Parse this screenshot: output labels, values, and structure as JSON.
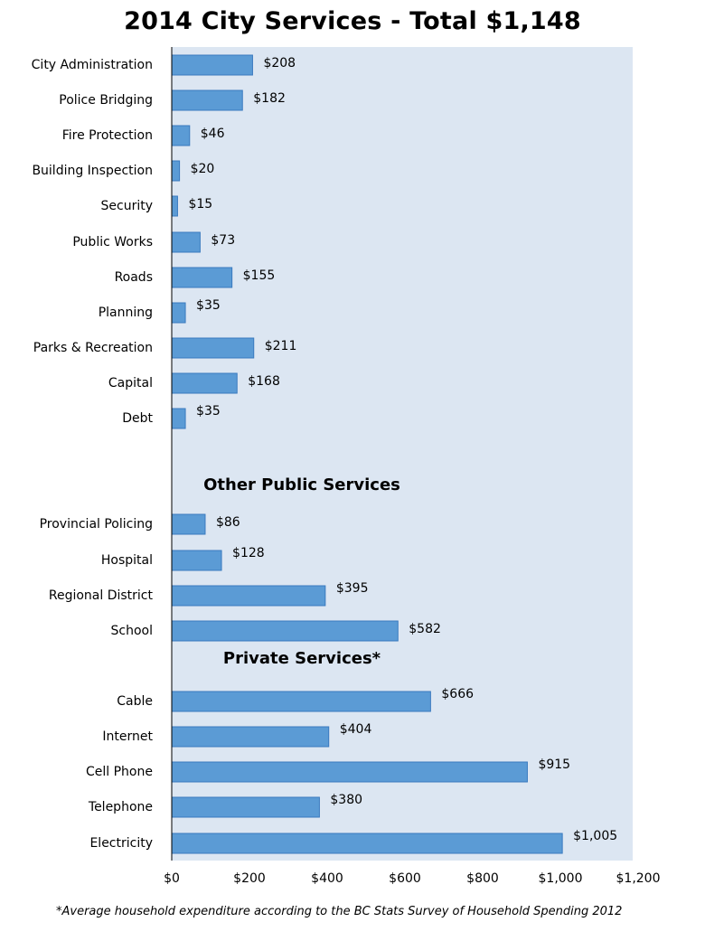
{
  "title": "2014 City Services - Total $1,148",
  "footnote": "*Average household expenditure according to the BC Stats Survey of Household Spending 2012",
  "colors": {
    "bar": "#5b9bd5",
    "bar_stroke": "#3a7abf",
    "plot_background": "#dce6f2",
    "axis": "#000000"
  },
  "chart_data": {
    "type": "bar",
    "orientation": "horizontal",
    "title": "2014 City Services - Total $1,148",
    "xlabel": "",
    "ylabel": "",
    "xlim": [
      0,
      1200
    ],
    "x_ticks": [
      "$0",
      "$200",
      "$400",
      "$600",
      "$800",
      "$1,000",
      "$1,200"
    ],
    "x_tick_values": [
      0,
      200,
      400,
      600,
      800,
      1000,
      1200
    ],
    "grid": false,
    "legend": "none",
    "groups": [
      {
        "heading": "",
        "categories": [
          "City Administration",
          "Police Bridging",
          "Fire Protection",
          "Building Inspection",
          "Security",
          "Public Works",
          "Roads",
          "Planning",
          "Parks & Recreation",
          "Capital",
          "Debt"
        ],
        "values": [
          208,
          182,
          46,
          20,
          15,
          73,
          155,
          35,
          211,
          168,
          35
        ],
        "labels": [
          "$208",
          "$182",
          "$46",
          "$20",
          "$15",
          "$73",
          "$155",
          "$35",
          "$211",
          "$168",
          "$35"
        ]
      },
      {
        "heading": "Other Public Services",
        "categories": [
          "Provincial Policing",
          "Hospital",
          "Regional District",
          "School"
        ],
        "values": [
          86,
          128,
          395,
          582
        ],
        "labels": [
          "$86",
          "$128",
          "$395",
          "$582"
        ]
      },
      {
        "heading": "Private Services*",
        "categories": [
          "Cable",
          "Internet",
          "Cell Phone",
          "Telephone",
          "Electricity"
        ],
        "values": [
          666,
          404,
          915,
          380,
          1005
        ],
        "labels": [
          "$666",
          "$404",
          "$915",
          "$380",
          "$1,005"
        ]
      }
    ]
  }
}
